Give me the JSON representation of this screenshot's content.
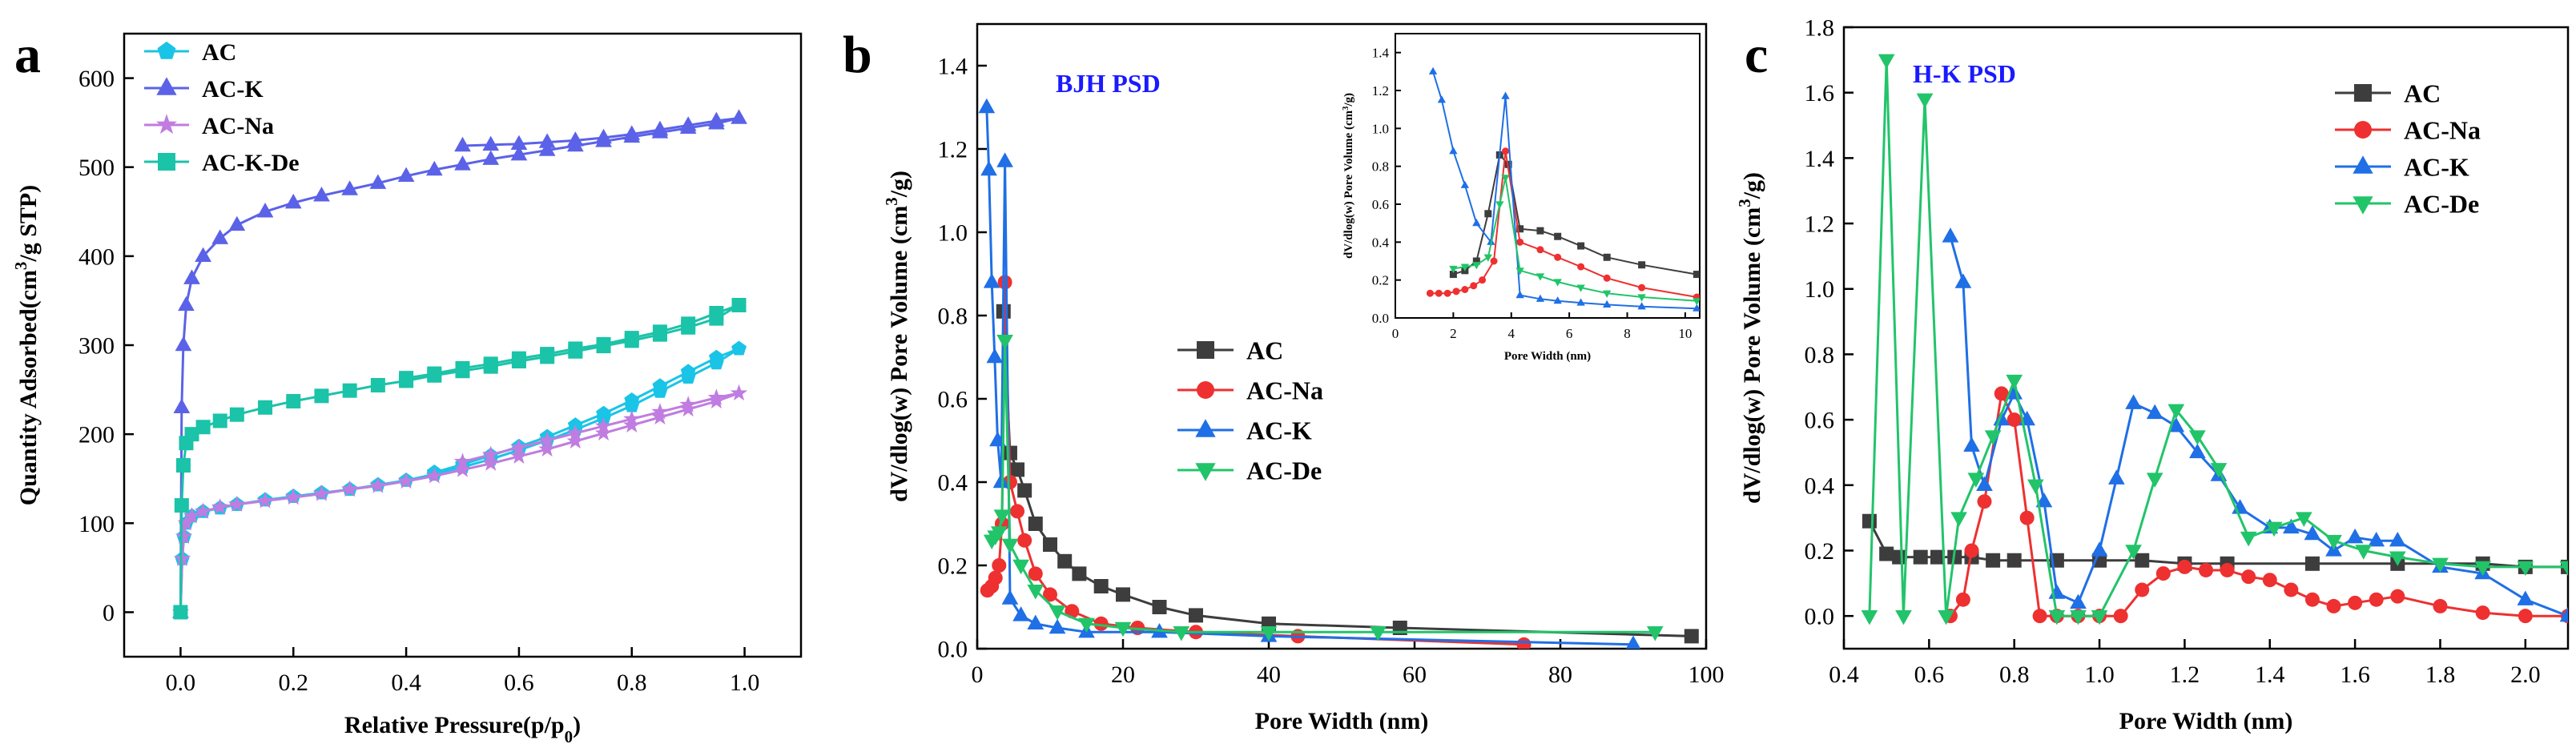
{
  "figure": {
    "panel_letters": [
      "a",
      "b",
      "c"
    ]
  },
  "colors": {
    "AC": "#3d3d3d",
    "AC-Na": "#ee3030",
    "AC-K": "#1f6fe6",
    "AC-De": "#22c46a",
    "a_AC": "#19c4e6",
    "a_AC-K": "#5b62e8",
    "a_AC-Na": "#c07ce0",
    "a_AC-K-De": "#1bc3a8",
    "annotation": "#1a1aff"
  },
  "chart_data": [
    {
      "panel": "a",
      "type": "line",
      "title": "",
      "xlabel": "Relative Pressure(p/p",
      "xlabel_sub": "0",
      "xlabel_end": ")",
      "ylabel": "Quantity Adsorbed(cm",
      "ylabel_sup": "3",
      "ylabel_end": "/g STP)",
      "xlim": [
        -0.1,
        1.1
      ],
      "ylim": [
        -50,
        650
      ],
      "xticks": [
        0.0,
        0.2,
        0.4,
        0.6,
        0.8,
        1.0
      ],
      "xtick_labels": [
        "0.0",
        "0.2",
        "0.4",
        "0.6",
        "0.8",
        "1.0"
      ],
      "yticks": [
        0,
        100,
        200,
        300,
        400,
        500,
        600
      ],
      "ytick_labels": [
        "0",
        "100",
        "200",
        "300",
        "400",
        "500",
        "600"
      ],
      "legend": {
        "position": "top-left",
        "entries": [
          "AC",
          "AC-K",
          "AC-Na",
          "AC-K-De"
        ]
      },
      "series": [
        {
          "name": "AC",
          "marker": "pentagon",
          "x": [
            0.0,
            0.003,
            0.006,
            0.01,
            0.02,
            0.04,
            0.07,
            0.1,
            0.15,
            0.2,
            0.25,
            0.3,
            0.35,
            0.4,
            0.45,
            0.5,
            0.55,
            0.6,
            0.65,
            0.7,
            0.75,
            0.8,
            0.85,
            0.9,
            0.95,
            0.99,
            0.95,
            0.9,
            0.85,
            0.8,
            0.75,
            0.7,
            0.65,
            0.6,
            0.55,
            0.5,
            0.45
          ],
          "y": [
            0,
            60,
            85,
            100,
            108,
            113,
            117,
            121,
            126,
            130,
            134,
            138,
            143,
            148,
            155,
            163,
            172,
            182,
            193,
            205,
            218,
            232,
            248,
            264,
            280,
            296,
            286,
            270,
            254,
            238,
            223,
            210,
            197,
            186,
            176,
            166,
            157
          ]
        },
        {
          "name": "AC-K",
          "marker": "triangle",
          "x": [
            0.0,
            0.002,
            0.005,
            0.01,
            0.02,
            0.04,
            0.07,
            0.1,
            0.15,
            0.2,
            0.25,
            0.3,
            0.35,
            0.4,
            0.45,
            0.5,
            0.55,
            0.6,
            0.65,
            0.7,
            0.75,
            0.8,
            0.85,
            0.9,
            0.95,
            0.99,
            0.95,
            0.9,
            0.85,
            0.8,
            0.75,
            0.7,
            0.65,
            0.6,
            0.55,
            0.5
          ],
          "y": [
            0,
            230,
            300,
            345,
            375,
            400,
            420,
            435,
            450,
            460,
            468,
            475,
            482,
            490,
            497,
            503,
            509,
            514,
            519,
            524,
            529,
            534,
            539,
            544,
            549,
            555,
            552,
            547,
            542,
            537,
            533,
            530,
            528,
            526,
            525,
            524
          ]
        },
        {
          "name": "AC-Na",
          "marker": "star",
          "x": [
            0.0,
            0.003,
            0.006,
            0.01,
            0.02,
            0.04,
            0.07,
            0.1,
            0.15,
            0.2,
            0.25,
            0.3,
            0.35,
            0.4,
            0.45,
            0.5,
            0.55,
            0.6,
            0.65,
            0.7,
            0.75,
            0.8,
            0.85,
            0.9,
            0.95,
            0.99,
            0.95,
            0.9,
            0.85,
            0.8,
            0.75,
            0.7,
            0.65,
            0.6,
            0.55,
            0.5
          ],
          "y": [
            0,
            60,
            85,
            100,
            108,
            113,
            118,
            121,
            125,
            129,
            133,
            138,
            142,
            147,
            153,
            160,
            167,
            175,
            183,
            192,
            201,
            210,
            219,
            228,
            237,
            246,
            241,
            233,
            225,
            217,
            209,
            201,
            193,
            185,
            177,
            169
          ]
        },
        {
          "name": "AC-K-De",
          "marker": "square",
          "x": [
            0.0,
            0.002,
            0.005,
            0.01,
            0.02,
            0.04,
            0.07,
            0.1,
            0.15,
            0.2,
            0.25,
            0.3,
            0.35,
            0.4,
            0.45,
            0.5,
            0.55,
            0.6,
            0.65,
            0.7,
            0.75,
            0.8,
            0.85,
            0.9,
            0.95,
            0.99,
            0.95,
            0.9,
            0.85,
            0.8,
            0.75,
            0.7,
            0.65,
            0.6,
            0.55,
            0.5,
            0.45,
            0.4
          ],
          "y": [
            0,
            120,
            165,
            190,
            200,
            208,
            215,
            222,
            230,
            237,
            243,
            249,
            255,
            260,
            266,
            271,
            276,
            282,
            287,
            293,
            299,
            305,
            312,
            320,
            330,
            345,
            336,
            324,
            315,
            308,
            301,
            296,
            290,
            285,
            279,
            274,
            268,
            263
          ]
        }
      ]
    },
    {
      "panel": "b",
      "type": "line",
      "annotation": "BJH PSD",
      "xlabel": "Pore Width (nm)",
      "ylabel": "dV/dlog(w) Pore Volume (cm",
      "ylabel_sup": "3",
      "ylabel_end": "/g)",
      "xlim": [
        0,
        100
      ],
      "ylim": [
        0,
        1.5
      ],
      "xticks": [
        0,
        20,
        40,
        60,
        80,
        100
      ],
      "xtick_labels": [
        "0",
        "20",
        "40",
        "60",
        "80",
        "100"
      ],
      "yticks": [
        0.0,
        0.2,
        0.4,
        0.6,
        0.8,
        1.0,
        1.2,
        1.4
      ],
      "ytick_labels": [
        "0.0",
        "0.2",
        "0.4",
        "0.6",
        "0.8",
        "1.0",
        "1.2",
        "1.4"
      ],
      "legend": {
        "position": "center-right",
        "entries": [
          "AC",
          "AC-Na",
          "AC-K",
          "AC-De"
        ]
      },
      "series": [
        {
          "name": "AC",
          "marker": "square",
          "x": [
            3.6,
            4.5,
            5.5,
            6.5,
            8,
            10,
            12,
            14,
            17,
            20,
            25,
            30,
            40,
            58,
            98
          ],
          "y": [
            0.81,
            0.47,
            0.43,
            0.38,
            0.3,
            0.25,
            0.21,
            0.18,
            0.15,
            0.13,
            0.1,
            0.08,
            0.06,
            0.05,
            0.03
          ]
        },
        {
          "name": "AC-Na",
          "marker": "circle",
          "x": [
            1.4,
            2,
            2.5,
            3,
            3.4,
            3.8,
            4.5,
            5.5,
            6.5,
            8,
            10,
            13,
            17,
            22,
            30,
            44,
            75
          ],
          "y": [
            0.14,
            0.15,
            0.17,
            0.2,
            0.3,
            0.88,
            0.4,
            0.33,
            0.26,
            0.18,
            0.13,
            0.09,
            0.06,
            0.05,
            0.04,
            0.03,
            0.01
          ]
        },
        {
          "name": "AC-K",
          "marker": "triangle",
          "x": [
            1.3,
            1.6,
            2,
            2.4,
            2.8,
            3.3,
            3.8,
            4.5,
            6,
            8,
            11,
            15,
            25,
            40,
            90
          ],
          "y": [
            1.3,
            1.15,
            0.88,
            0.7,
            0.5,
            0.4,
            1.17,
            0.12,
            0.08,
            0.06,
            0.05,
            0.04,
            0.04,
            0.03,
            0.01
          ]
        },
        {
          "name": "AC-De",
          "marker": "triangle-down",
          "x": [
            2,
            2.5,
            3,
            3.4,
            3.8,
            4.5,
            6,
            8,
            11,
            15,
            20,
            28,
            40,
            55,
            93
          ],
          "y": [
            0.26,
            0.27,
            0.28,
            0.32,
            0.74,
            0.25,
            0.2,
            0.14,
            0.09,
            0.06,
            0.05,
            0.04,
            0.04,
            0.04,
            0.04
          ]
        }
      ],
      "inset": {
        "xlabel": "Pore Width (nm)",
        "ylabel": "dV/dlog(w) Pore Volume (cm",
        "ylabel_sup": "3",
        "ylabel_end": "/g)",
        "xlim": [
          0,
          10.5
        ],
        "ylim": [
          0,
          1.5
        ],
        "xticks": [
          0,
          2,
          4,
          6,
          8,
          10
        ],
        "xtick_labels": [
          "0",
          "2",
          "4",
          "6",
          "8",
          "10"
        ],
        "yticks": [
          0.0,
          0.2,
          0.4,
          0.6,
          0.8,
          1.0,
          1.2,
          1.4
        ],
        "ytick_labels": [
          "0.0",
          "0.2",
          "0.4",
          "0.6",
          "0.8",
          "1.0",
          "1.2",
          "1.4"
        ],
        "series": [
          {
            "name": "AC",
            "marker": "square",
            "x": [
              2.0,
              2.4,
              2.8,
              3.2,
              3.6,
              3.9,
              4.3,
              5,
              5.6,
              6.4,
              7.3,
              8.5,
              10.4
            ],
            "y": [
              0.23,
              0.25,
              0.3,
              0.55,
              0.86,
              0.81,
              0.47,
              0.46,
              0.43,
              0.38,
              0.32,
              0.28,
              0.23
            ]
          },
          {
            "name": "AC-Na",
            "marker": "circle",
            "x": [
              1.2,
              1.5,
              1.8,
              2.1,
              2.4,
              2.7,
              3.0,
              3.4,
              3.8,
              4.3,
              5,
              5.6,
              6.4,
              7.3,
              8.5,
              10.4
            ],
            "y": [
              0.13,
              0.13,
              0.13,
              0.14,
              0.15,
              0.17,
              0.2,
              0.3,
              0.88,
              0.4,
              0.36,
              0.32,
              0.27,
              0.21,
              0.16,
              0.11
            ]
          },
          {
            "name": "AC-K",
            "marker": "triangle",
            "x": [
              1.3,
              1.6,
              2.0,
              2.4,
              2.8,
              3.3,
              3.8,
              4.3,
              5,
              5.6,
              6.4,
              7.3,
              8.5,
              10.4
            ],
            "y": [
              1.3,
              1.15,
              0.88,
              0.7,
              0.5,
              0.4,
              1.17,
              0.12,
              0.1,
              0.09,
              0.08,
              0.07,
              0.06,
              0.05
            ]
          },
          {
            "name": "AC-De",
            "marker": "triangle-down",
            "x": [
              2.0,
              2.4,
              2.8,
              3.2,
              3.6,
              3.8,
              4.3,
              5,
              5.6,
              6.4,
              7.3,
              8.5,
              10.4
            ],
            "y": [
              0.26,
              0.27,
              0.28,
              0.32,
              0.6,
              0.74,
              0.25,
              0.22,
              0.19,
              0.16,
              0.13,
              0.11,
              0.09
            ]
          }
        ]
      }
    },
    {
      "panel": "c",
      "type": "line",
      "annotation": "H-K PSD",
      "xlabel": "Pore Width (nm)",
      "ylabel": "dV/dlog(w) Pore Volume (cm",
      "ylabel_sup": "3",
      "ylabel_end": "/g)",
      "xlim": [
        0.4,
        2.1
      ],
      "ylim": [
        -0.1,
        1.8
      ],
      "xticks": [
        0.4,
        0.6,
        0.8,
        1.0,
        1.2,
        1.4,
        1.6,
        1.8,
        2.0
      ],
      "xtick_labels": [
        "0.4",
        "0.6",
        "0.8",
        "1.0",
        "1.2",
        "1.4",
        "1.6",
        "1.8",
        "2.0"
      ],
      "yticks": [
        0.0,
        0.2,
        0.4,
        0.6,
        0.8,
        1.0,
        1.2,
        1.4,
        1.6,
        1.8
      ],
      "ytick_labels": [
        "0.0",
        "0.2",
        "0.4",
        "0.6",
        "0.8",
        "1.0",
        "1.2",
        "1.4",
        "1.6",
        "1.8"
      ],
      "legend": {
        "position": "top-right",
        "entries": [
          "AC",
          "AC-Na",
          "AC-K",
          "AC-De"
        ]
      },
      "series": [
        {
          "name": "AC",
          "marker": "square",
          "x": [
            0.46,
            0.5,
            0.53,
            0.58,
            0.62,
            0.66,
            0.7,
            0.75,
            0.8,
            0.9,
            1.0,
            1.1,
            1.2,
            1.3,
            1.5,
            1.7,
            1.9,
            2.0,
            2.1
          ],
          "y": [
            0.29,
            0.19,
            0.18,
            0.18,
            0.18,
            0.18,
            0.18,
            0.17,
            0.17,
            0.17,
            0.17,
            0.17,
            0.16,
            0.16,
            0.16,
            0.16,
            0.16,
            0.15,
            0.15
          ]
        },
        {
          "name": "AC-Na",
          "marker": "circle",
          "x": [
            0.65,
            0.68,
            0.7,
            0.73,
            0.77,
            0.8,
            0.83,
            0.86,
            0.9,
            0.95,
            1.0,
            1.05,
            1.1,
            1.15,
            1.2,
            1.25,
            1.3,
            1.35,
            1.4,
            1.45,
            1.5,
            1.55,
            1.6,
            1.65,
            1.7,
            1.8,
            1.9,
            2.0,
            2.1
          ],
          "y": [
            0.0,
            0.05,
            0.2,
            0.35,
            0.68,
            0.6,
            0.3,
            0.0,
            0.0,
            0.0,
            0.0,
            0.0,
            0.08,
            0.13,
            0.15,
            0.14,
            0.14,
            0.12,
            0.11,
            0.08,
            0.05,
            0.03,
            0.04,
            0.05,
            0.06,
            0.03,
            0.01,
            0.0,
            0.0
          ]
        },
        {
          "name": "AC-K",
          "marker": "triangle",
          "x": [
            0.65,
            0.68,
            0.7,
            0.73,
            0.77,
            0.8,
            0.83,
            0.87,
            0.9,
            0.95,
            1.0,
            1.04,
            1.08,
            1.13,
            1.18,
            1.23,
            1.28,
            1.33,
            1.4,
            1.45,
            1.5,
            1.55,
            1.6,
            1.65,
            1.7,
            1.8,
            1.9,
            2.0,
            2.1
          ],
          "y": [
            1.16,
            1.02,
            0.52,
            0.4,
            0.6,
            0.68,
            0.6,
            0.35,
            0.07,
            0.04,
            0.2,
            0.42,
            0.65,
            0.62,
            0.58,
            0.5,
            0.43,
            0.33,
            0.27,
            0.27,
            0.25,
            0.2,
            0.24,
            0.23,
            0.23,
            0.15,
            0.13,
            0.05,
            0.0
          ]
        },
        {
          "name": "AC-De",
          "marker": "triangle-down",
          "x": [
            0.46,
            0.5,
            0.54,
            0.59,
            0.64,
            0.67,
            0.71,
            0.75,
            0.8,
            0.85,
            0.9,
            0.95,
            1.0,
            1.08,
            1.13,
            1.18,
            1.23,
            1.28,
            1.35,
            1.41,
            1.48,
            1.55,
            1.62,
            1.7,
            1.8,
            1.9,
            2.0,
            2.1
          ],
          "y": [
            0.0,
            1.7,
            0.0,
            1.58,
            0.0,
            0.3,
            0.42,
            0.55,
            0.72,
            0.4,
            0.0,
            0.0,
            0.0,
            0.2,
            0.42,
            0.63,
            0.55,
            0.45,
            0.24,
            0.27,
            0.3,
            0.23,
            0.2,
            0.18,
            0.16,
            0.15,
            0.15,
            0.15
          ]
        }
      ]
    }
  ]
}
